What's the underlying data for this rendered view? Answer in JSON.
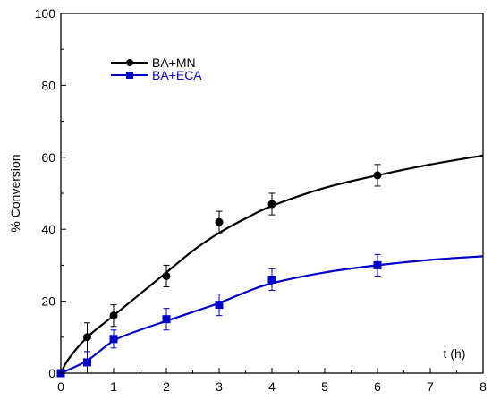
{
  "chart_data": {
    "type": "scatter",
    "title": "",
    "xlabel": "t (h)",
    "ylabel": "% Conversion",
    "xlim": [
      0,
      8
    ],
    "ylim": [
      0,
      100
    ],
    "x_ticks": [
      0,
      1,
      2,
      3,
      4,
      5,
      6,
      7,
      8
    ],
    "y_ticks": [
      0,
      20,
      40,
      60,
      80,
      100
    ],
    "x_tick_labels": [
      "0",
      "1",
      "2",
      "3",
      "4",
      "5",
      "6",
      "7",
      "8"
    ],
    "y_tick_labels": [
      "0",
      "20",
      "40",
      "60",
      "80",
      "100"
    ],
    "grid": false,
    "legend_position": "top-left",
    "series": [
      {
        "name": "BA+MN",
        "color": "#000000",
        "marker": "circle",
        "points": [
          {
            "x": 0,
            "y": 0,
            "err": 0
          },
          {
            "x": 0.5,
            "y": 10,
            "err": 4
          },
          {
            "x": 1,
            "y": 16,
            "err": 3
          },
          {
            "x": 2,
            "y": 27,
            "err": 3
          },
          {
            "x": 3,
            "y": 42,
            "err": 3
          },
          {
            "x": 4,
            "y": 47,
            "err": 3
          },
          {
            "x": 6,
            "y": 55,
            "err": 3
          }
        ],
        "fit_curve": [
          [
            0,
            0
          ],
          [
            0.15,
            4
          ],
          [
            0.5,
            10
          ],
          [
            1,
            16
          ],
          [
            1.5,
            22
          ],
          [
            2,
            28
          ],
          [
            2.5,
            34
          ],
          [
            3,
            39
          ],
          [
            3.5,
            43
          ],
          [
            4,
            46.5
          ],
          [
            5,
            51.5
          ],
          [
            6,
            55
          ],
          [
            7,
            58
          ],
          [
            8,
            60.5
          ]
        ]
      },
      {
        "name": "BA+ECA",
        "color": "#0000cc",
        "marker": "square",
        "points": [
          {
            "x": 0,
            "y": 0,
            "err": 0
          },
          {
            "x": 0.5,
            "y": 3,
            "err": 3
          },
          {
            "x": 1,
            "y": 9.5,
            "err": 2.5
          },
          {
            "x": 2,
            "y": 15,
            "err": 3
          },
          {
            "x": 3,
            "y": 19,
            "err": 3
          },
          {
            "x": 4,
            "y": 26,
            "err": 3
          },
          {
            "x": 6,
            "y": 30,
            "err": 3
          }
        ],
        "fit_curve": [
          [
            0,
            0
          ],
          [
            0.5,
            3.5
          ],
          [
            1,
            9
          ],
          [
            1.5,
            12
          ],
          [
            2,
            14.5
          ],
          [
            2.5,
            17
          ],
          [
            3,
            19.5
          ],
          [
            3.5,
            22.5
          ],
          [
            4,
            25
          ],
          [
            5,
            28
          ],
          [
            6,
            30
          ],
          [
            7,
            31.5
          ],
          [
            8,
            32.5
          ]
        ]
      }
    ]
  }
}
